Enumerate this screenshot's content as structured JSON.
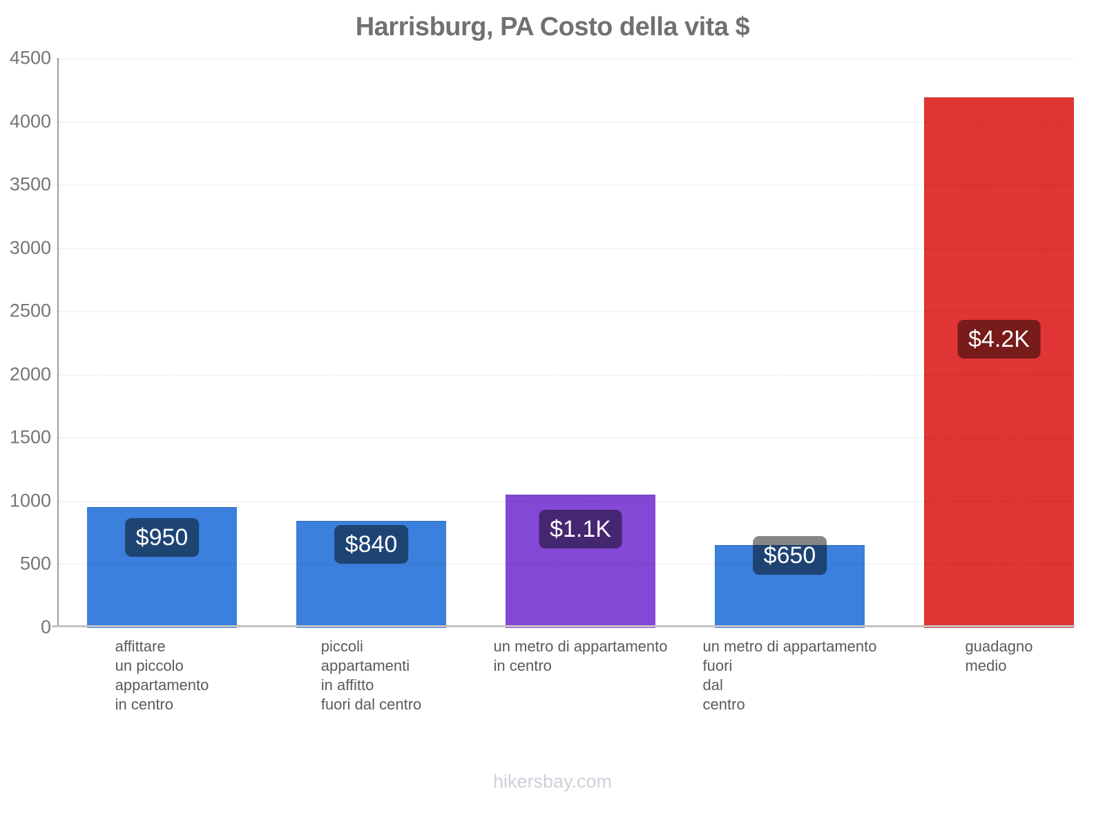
{
  "title": "Harrisburg, PA Costo della vita $",
  "footer": "hikersbay.com",
  "chart_data": {
    "type": "bar",
    "title": "Harrisburg, PA Costo della vita $",
    "xlabel": "",
    "ylabel": "",
    "ylim": [
      0,
      4500
    ],
    "yticks": [
      0,
      500,
      1000,
      1500,
      2000,
      2500,
      3000,
      3500,
      4000,
      4500
    ],
    "grid": "faint dotted horizontal gridlines, visible mostly over bars",
    "legend_position": "none",
    "categories": [
      "affittare un piccolo appartamento in centro",
      "piccoli appartamenti in affitto fuori dal centro",
      "un metro di appartamento in centro",
      "un metro di appartamento fuori dal centro",
      "guadagno medio"
    ],
    "category_lines": [
      [
        "affittare",
        "un piccolo",
        "appartamento",
        "in centro"
      ],
      [
        "piccoli",
        "appartamenti",
        "in affitto",
        "fuori dal centro"
      ],
      [
        "un metro di appartamento",
        "in centro"
      ],
      [
        "un metro di appartamento",
        "fuori",
        "dal",
        "centro"
      ],
      [
        "guadagno",
        "medio"
      ]
    ],
    "values": [
      950,
      840,
      1050,
      650,
      4190
    ],
    "value_labels": [
      "$950",
      "$840",
      "$1.1K",
      "$650",
      "$4.2K"
    ],
    "bar_colors": [
      "#3a80dc",
      "#3a80dc",
      "#8348d6",
      "#3a80dc",
      "#e13434"
    ],
    "colors": {
      "title_text": "#717171",
      "tick_text": "#757575",
      "category_text": "#5a5a5a",
      "axis_line": "#9e9e9e",
      "baseline": "#c2c2c2",
      "value_badge_bg": "rgba(0,0,0,0.47)",
      "value_badge_text": "#ffffff",
      "footer_text": "#ccd0d8"
    }
  }
}
